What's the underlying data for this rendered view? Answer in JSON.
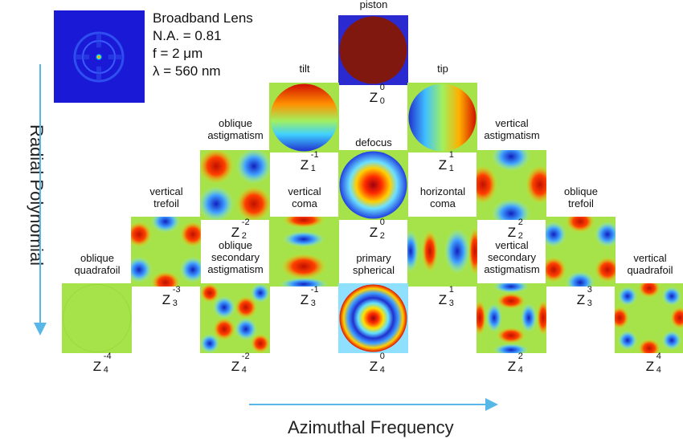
{
  "info": {
    "title": "Broadband Lens",
    "na": "N.A. = 0.81",
    "focal": "f = 2 μm",
    "wavelength": "λ = 560 nm"
  },
  "axes": {
    "vertical": "Radial Polynomial",
    "horizontal": "Azimuthal Frequency"
  },
  "colors": {
    "axis_arrow": "#59b6e8",
    "tile_bg_green": "#a6e34a",
    "psf_bg": "#1a1ad6"
  },
  "modes": [
    {
      "id": "z00",
      "name": "piston",
      "n": "0",
      "m": "0"
    },
    {
      "id": "z1m1",
      "name": "tilt",
      "n": "1",
      "m": "-1"
    },
    {
      "id": "z11",
      "name": "tip",
      "n": "1",
      "m": "1"
    },
    {
      "id": "z2m2",
      "name": "oblique\nastigmatism",
      "n": "2",
      "m": "-2"
    },
    {
      "id": "z20",
      "name": "defocus",
      "n": "2",
      "m": "0"
    },
    {
      "id": "z22",
      "name": "vertical\nastigmatism",
      "n": "2",
      "m": "2"
    },
    {
      "id": "z3m3",
      "name": "vertical\ntrefoil",
      "n": "3",
      "m": "-3"
    },
    {
      "id": "z3m1",
      "name": "vertical\ncoma",
      "n": "3",
      "m": "-1"
    },
    {
      "id": "z31",
      "name": "horizontal\ncoma",
      "n": "3",
      "m": "1"
    },
    {
      "id": "z33",
      "name": "oblique\ntrefoil",
      "n": "3",
      "m": "3"
    },
    {
      "id": "z4m4",
      "name": "oblique\nquadrafoil",
      "n": "4",
      "m": "-4"
    },
    {
      "id": "z4m2",
      "name": "oblique\nsecondary\nastigmatism",
      "n": "4",
      "m": "-2"
    },
    {
      "id": "z40",
      "name": "primary\nspherical",
      "n": "4",
      "m": "0"
    },
    {
      "id": "z42",
      "name": "vertical\nsecondary\nastigmatism",
      "n": "4",
      "m": "2"
    },
    {
      "id": "z44",
      "name": "vertical\nquadrafoil",
      "n": "4",
      "m": "4"
    }
  ]
}
